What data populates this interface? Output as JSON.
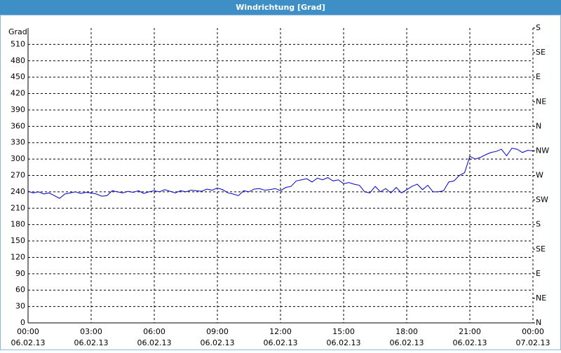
{
  "window_title": "Windrichtung [Grad]",
  "chart_data": {
    "type": "line",
    "ylabel": "Grad",
    "x": [
      0,
      0.25,
      0.5,
      0.75,
      1,
      1.25,
      1.5,
      1.75,
      2,
      2.25,
      2.5,
      2.75,
      3,
      3.25,
      3.5,
      3.75,
      4,
      4.25,
      4.5,
      4.75,
      5,
      5.25,
      5.5,
      5.75,
      6,
      6.25,
      6.5,
      6.75,
      7,
      7.25,
      7.5,
      7.75,
      8,
      8.25,
      8.5,
      8.75,
      9,
      9.25,
      9.5,
      9.75,
      10,
      10.25,
      10.5,
      10.75,
      11,
      11.25,
      11.5,
      11.75,
      12,
      12.25,
      12.5,
      12.75,
      13,
      13.25,
      13.5,
      13.75,
      14,
      14.25,
      14.5,
      14.75,
      15,
      15.25,
      15.5,
      15.75,
      16,
      16.25,
      16.5,
      16.75,
      17,
      17.25,
      17.5,
      17.75,
      18,
      18.25,
      18.5,
      18.75,
      19,
      19.25,
      19.5,
      19.75,
      20,
      20.25,
      20.5,
      20.75,
      21,
      21.25,
      21.5,
      21.75,
      22,
      22.25,
      22.5,
      22.75,
      23,
      23.25,
      23.5,
      23.75,
      24
    ],
    "series": [
      {
        "color": "#0000cc",
        "values": [
          241,
          238,
          240,
          236,
          238,
          233,
          228,
          236,
          238,
          240,
          237,
          239,
          238,
          236,
          232,
          233,
          242,
          240,
          238,
          241,
          239,
          242,
          237,
          240,
          242,
          240,
          244,
          241,
          238,
          242,
          240,
          243,
          242,
          241,
          245,
          243,
          247,
          244,
          238,
          236,
          233,
          242,
          240,
          245,
          246,
          243,
          244,
          246,
          242,
          248,
          250,
          260,
          262,
          264,
          258,
          265,
          262,
          266,
          260,
          262,
          255,
          257,
          254,
          252,
          240,
          238,
          250,
          240,
          246,
          238,
          248,
          238,
          244,
          250,
          254,
          244,
          252,
          240,
          240,
          242,
          258,
          260,
          270,
          275,
          305,
          300,
          303,
          308,
          312,
          314,
          318,
          306,
          320,
          318,
          312,
          316,
          315
        ]
      }
    ],
    "xlim": [
      0,
      24
    ],
    "xticks": [
      {
        "value": 0,
        "label": "00:00",
        "date": "06.02.13"
      },
      {
        "value": 3,
        "label": "03:00",
        "date": "06.02.13"
      },
      {
        "value": 6,
        "label": "06:00",
        "date": "06.02.13"
      },
      {
        "value": 9,
        "label": "09:00",
        "date": "06.02.13"
      },
      {
        "value": 12,
        "label": "12:00",
        "date": "06.02.13"
      },
      {
        "value": 15,
        "label": "15:00",
        "date": "06.02.13"
      },
      {
        "value": 18,
        "label": "18:00",
        "date": "06.02.13"
      },
      {
        "value": 21,
        "label": "21:00",
        "date": "06.02.13"
      },
      {
        "value": 24,
        "label": "00:00",
        "date": "07.02.13"
      }
    ],
    "ylim": [
      0,
      540
    ],
    "yticks": [
      0,
      30,
      60,
      90,
      120,
      150,
      180,
      210,
      240,
      270,
      300,
      330,
      360,
      390,
      420,
      450,
      480,
      510
    ],
    "y2lim": [
      0,
      540
    ],
    "y2ticks": [
      {
        "value": 0,
        "label": "N"
      },
      {
        "value": 45,
        "label": "NE"
      },
      {
        "value": 90,
        "label": "E"
      },
      {
        "value": 135,
        "label": "SE"
      },
      {
        "value": 180,
        "label": "S"
      },
      {
        "value": 225,
        "label": "SW"
      },
      {
        "value": 270,
        "label": "W"
      },
      {
        "value": 315,
        "label": "NW"
      },
      {
        "value": 360,
        "label": "N"
      },
      {
        "value": 405,
        "label": "NE"
      },
      {
        "value": 450,
        "label": "E"
      },
      {
        "value": 495,
        "label": "SE"
      },
      {
        "value": 540,
        "label": "S"
      }
    ],
    "grid": true
  }
}
